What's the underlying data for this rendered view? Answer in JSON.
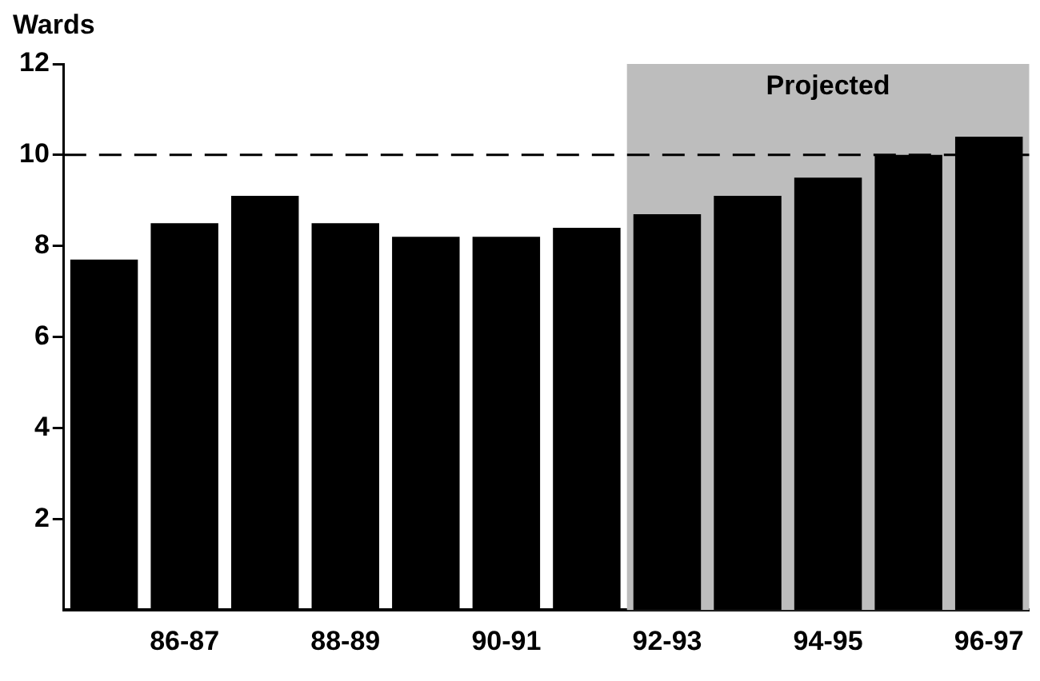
{
  "chart_data": {
    "type": "bar",
    "ylabel": "Wards",
    "categories": [
      null,
      "86-87",
      null,
      "88-89",
      null,
      "90-91",
      null,
      "92-93",
      null,
      "94-95",
      null,
      "96-97"
    ],
    "values": [
      7.7,
      8.5,
      9.1,
      8.5,
      8.2,
      8.2,
      8.4,
      8.7,
      9.1,
      9.5,
      10,
      10.4
    ],
    "color": "#000000",
    "ylim": [
      0,
      12
    ],
    "yticks": [
      2,
      4,
      6,
      8,
      10,
      12
    ],
    "grid": false,
    "legend": false,
    "ref_lines": [
      {
        "axis": "y",
        "value": 10,
        "line_style": "dashed",
        "color": "#000000"
      }
    ],
    "bands": [
      {
        "axis": "x",
        "from": "92-93",
        "to": "96-97",
        "label": "Projected",
        "color": "#bdbdbd"
      }
    ]
  }
}
